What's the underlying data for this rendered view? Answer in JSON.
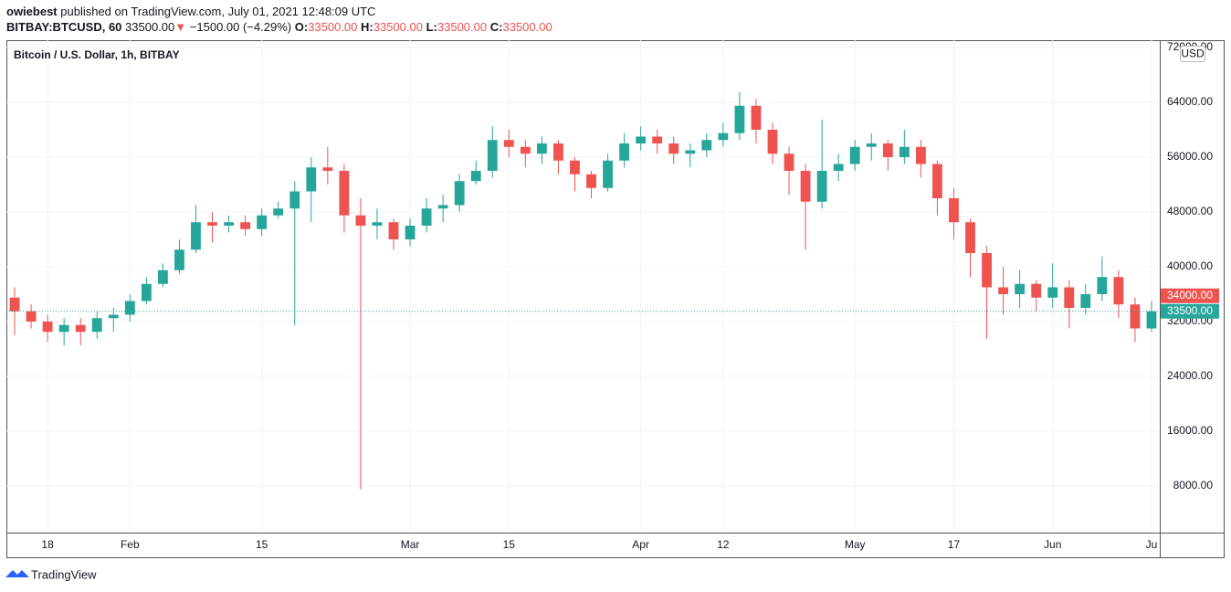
{
  "header": {
    "author": "owiebest",
    "published": "published on TradingView.com, July 01, 2021 12:48:09 UTC",
    "symbol": "BITBAY:BTCUSD, 60",
    "last": "33500.00",
    "arrow": "▼",
    "change": "−1500.00 (−4.29%)",
    "ohlc": [
      {
        "key": "O:",
        "value": "33500.00"
      },
      {
        "key": "H:",
        "value": "33500.00"
      },
      {
        "key": "L:",
        "value": "33500.00"
      },
      {
        "key": "C:",
        "value": "33500.00"
      }
    ]
  },
  "footer": {
    "brand": "TradingView"
  },
  "chart_data": {
    "type": "candlestick",
    "title": "Bitcoin / U.S. Dollar, 1h, BITBAY",
    "currency": "USD",
    "up_color": "#26a69a",
    "down_color": "#ef5350",
    "grid": true,
    "categories": [
      null,
      null,
      "18",
      null,
      null,
      null,
      null,
      "Feb",
      null,
      null,
      null,
      null,
      null,
      null,
      null,
      "15",
      null,
      null,
      null,
      null,
      null,
      null,
      null,
      null,
      "Mar",
      null,
      null,
      null,
      null,
      null,
      "15",
      null,
      null,
      null,
      null,
      null,
      null,
      null,
      "Apr",
      null,
      null,
      null,
      null,
      "12",
      null,
      null,
      null,
      null,
      null,
      null,
      null,
      "May",
      null,
      null,
      null,
      null,
      null,
      "17",
      null,
      null,
      null,
      null,
      null,
      "Jun",
      null,
      null,
      null,
      null,
      null,
      "Ju"
    ],
    "open": [
      35500,
      33500,
      32000,
      30500,
      31500,
      30500,
      32500,
      33000,
      35000,
      37500,
      39500,
      42500,
      46500,
      46000,
      46500,
      45500,
      47500,
      48500,
      51000,
      54500,
      54000,
      47500,
      46000,
      46500,
      44000,
      46000,
      48500,
      49000,
      52500,
      54000,
      58500,
      57500,
      56500,
      58000,
      55500,
      53500,
      51500,
      55500,
      58000,
      59000,
      58000,
      56500,
      57000,
      58500,
      59500,
      63500,
      60000,
      56500,
      54000,
      49500,
      54000,
      55000,
      57500,
      58000,
      56000,
      57500,
      55000,
      50000,
      46500,
      42000,
      37000,
      36000,
      37500,
      35500,
      37000,
      34000,
      36000,
      38500,
      34500,
      31000
    ],
    "high": [
      37000,
      34500,
      33000,
      32500,
      32500,
      33500,
      34000,
      36000,
      38500,
      40500,
      44000,
      49000,
      48000,
      47500,
      47500,
      48500,
      49500,
      52500,
      56000,
      57500,
      55000,
      50000,
      48500,
      47000,
      47000,
      50000,
      50500,
      53500,
      55500,
      60500,
      60000,
      58500,
      59000,
      58500,
      56000,
      54000,
      56500,
      59500,
      60500,
      60000,
      59000,
      58000,
      59500,
      61000,
      65500,
      64500,
      61000,
      57500,
      55000,
      61500,
      56500,
      58500,
      59500,
      58500,
      60000,
      58500,
      55500,
      51500,
      47000,
      43000,
      40000,
      39500,
      38000,
      40500,
      38000,
      37500,
      41500,
      39500,
      35500,
      35000
    ],
    "low": [
      30000,
      31000,
      29000,
      28500,
      28500,
      29500,
      30500,
      32000,
      34500,
      37000,
      39000,
      42000,
      43500,
      45000,
      44500,
      44500,
      47000,
      31500,
      46500,
      52000,
      45000,
      7500,
      44000,
      42500,
      43000,
      45000,
      46500,
      48000,
      52000,
      53000,
      56000,
      54500,
      55000,
      53500,
      51000,
      50000,
      51000,
      54500,
      57000,
      56500,
      55000,
      54500,
      56000,
      57500,
      58500,
      58000,
      55000,
      50500,
      42500,
      48500,
      52500,
      54000,
      55500,
      54000,
      55000,
      53000,
      47500,
      44000,
      38500,
      29500,
      33000,
      34000,
      33500,
      34000,
      31000,
      33000,
      35000,
      32500,
      29000,
      30500
    ],
    "close": [
      33500,
      32000,
      30500,
      31500,
      30500,
      32500,
      33000,
      35000,
      37500,
      39500,
      42500,
      46500,
      46000,
      46500,
      45500,
      47500,
      48500,
      51000,
      54500,
      54000,
      47500,
      46000,
      46500,
      44000,
      46000,
      48500,
      49000,
      52500,
      54000,
      58500,
      57500,
      56500,
      58000,
      55500,
      53500,
      51500,
      55500,
      58000,
      59000,
      58000,
      56500,
      57000,
      58500,
      59500,
      63500,
      60000,
      56500,
      54000,
      49500,
      54000,
      55000,
      57500,
      58000,
      56000,
      57500,
      55000,
      50000,
      46500,
      42000,
      37000,
      36000,
      37500,
      35500,
      37000,
      34000,
      36000,
      38500,
      34500,
      31000,
      33500
    ],
    "ylim": [
      1200,
      73067
    ],
    "yticks": [
      {
        "value": 8000,
        "label": "8000.00"
      },
      {
        "value": 16000,
        "label": "16000.00"
      },
      {
        "value": 24000,
        "label": "24000.00"
      },
      {
        "value": 32000,
        "label": "32000.00"
      },
      {
        "value": 40000,
        "label": "40000.00"
      },
      {
        "value": 48000,
        "label": "48000.00"
      },
      {
        "value": 56000,
        "label": "56000.00"
      },
      {
        "value": 64000,
        "label": "64000.00"
      },
      {
        "value": 72000,
        "label": "72000.00"
      }
    ],
    "price_labels": [
      {
        "value": 34000,
        "label": "34000.00",
        "color": "#ef5350"
      },
      {
        "value": 33500,
        "label": "33500.00",
        "color": "#26a69a"
      }
    ]
  }
}
